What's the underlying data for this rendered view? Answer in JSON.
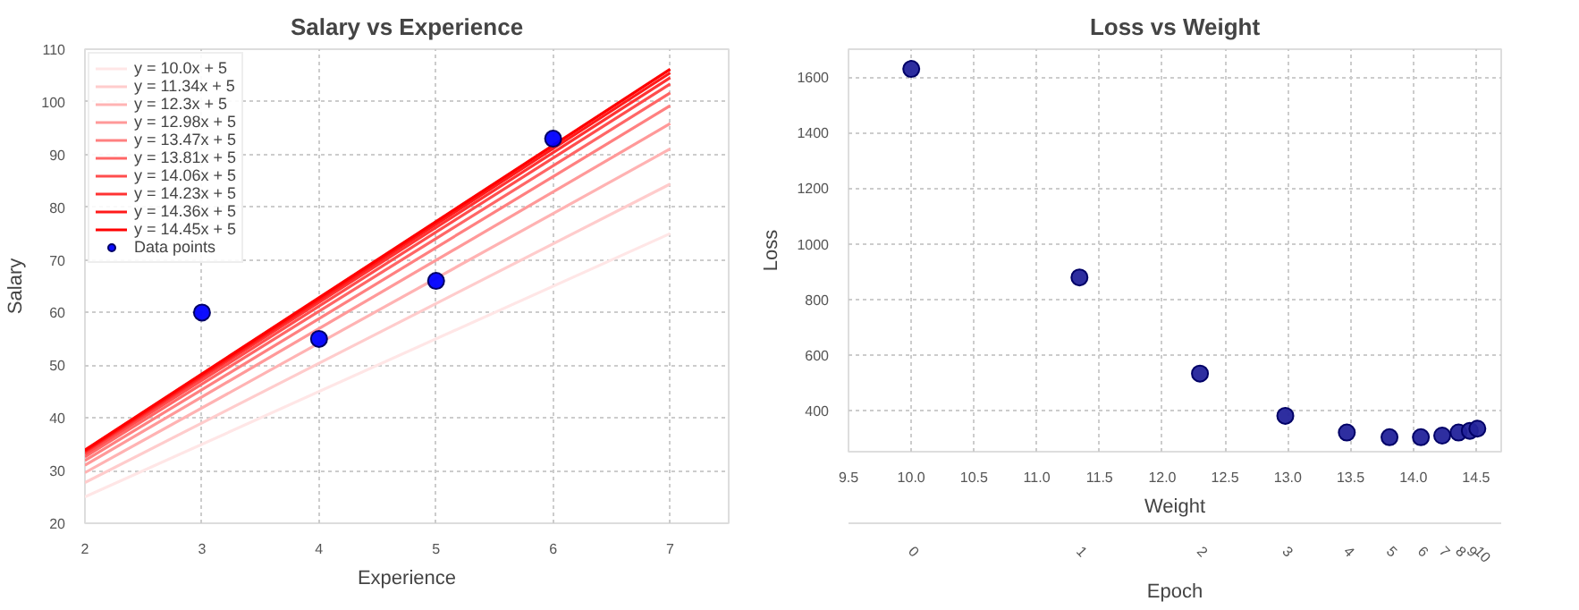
{
  "chart_data": [
    {
      "type": "line",
      "title": "Salary vs Experience",
      "xlabel": "Experience",
      "ylabel": "Salary",
      "xlim": [
        2,
        7.5
      ],
      "ylim": [
        20,
        110
      ],
      "xticks": [
        2,
        3,
        4,
        5,
        6,
        7
      ],
      "yticks": [
        20,
        30,
        40,
        50,
        60,
        70,
        80,
        90,
        100,
        110
      ],
      "grid": true,
      "legend": "top left",
      "line_style": "solid",
      "series": [
        {
          "name": "y = 10.0x + 5",
          "color": "#ffe6e6",
          "x": [
            2,
            7
          ],
          "values": [
            25,
            75
          ]
        },
        {
          "name": "y = 11.34x + 5",
          "color": "#ffcccc",
          "x": [
            2,
            7
          ],
          "values": [
            27.7,
            84.4
          ]
        },
        {
          "name": "y = 12.3x + 5",
          "color": "#ffb3b3",
          "x": [
            2,
            7
          ],
          "values": [
            29.6,
            91.1
          ]
        },
        {
          "name": "y = 12.98x + 5",
          "color": "#ff9999",
          "x": [
            2,
            7
          ],
          "values": [
            31.0,
            95.9
          ]
        },
        {
          "name": "y = 13.47x + 5",
          "color": "#ff8080",
          "x": [
            2,
            7
          ],
          "values": [
            31.9,
            99.3
          ]
        },
        {
          "name": "y = 13.81x + 5",
          "color": "#ff6666",
          "x": [
            2,
            7
          ],
          "values": [
            32.6,
            101.7
          ]
        },
        {
          "name": "y = 14.06x + 5",
          "color": "#ff4d4d",
          "x": [
            2,
            7
          ],
          "values": [
            33.1,
            103.4
          ]
        },
        {
          "name": "y = 14.23x + 5",
          "color": "#ff3333",
          "x": [
            2,
            7
          ],
          "values": [
            33.5,
            104.6
          ]
        },
        {
          "name": "y = 14.36x + 5",
          "color": "#ff1a1a",
          "x": [
            2,
            7
          ],
          "values": [
            33.7,
            105.5
          ]
        },
        {
          "name": "y = 14.45x + 5",
          "color": "#ff0000",
          "x": [
            2,
            7
          ],
          "values": [
            33.9,
            106.2
          ]
        },
        {
          "name": "Data points",
          "type": "scatter",
          "marker": "circle",
          "color": "#0000ff",
          "x": [
            3,
            4,
            5,
            6
          ],
          "values": [
            60,
            55,
            66,
            93
          ]
        }
      ]
    },
    {
      "type": "scatter",
      "title": "Loss vs Weight",
      "xlabel": "Weight",
      "ylabel": "Loss",
      "x2label": "Epoch",
      "marker": "circle",
      "grid": true,
      "xlim": [
        9.5,
        14.7
      ],
      "ylim": [
        252,
        1700
      ],
      "xticks": [
        {
          "value": 9.5,
          "label": "9.5"
        },
        {
          "value": 10,
          "label": "10.0"
        },
        {
          "value": 10.5,
          "label": "10.5"
        },
        {
          "value": 11,
          "label": "11.0"
        },
        {
          "value": 11.5,
          "label": "11.5"
        },
        {
          "value": 12,
          "label": "12.0"
        },
        {
          "value": 12.5,
          "label": "12.5"
        },
        {
          "value": 13,
          "label": "13.0"
        },
        {
          "value": 13.5,
          "label": "13.5"
        },
        {
          "value": 14,
          "label": "14.0"
        },
        {
          "value": 14.5,
          "label": "14.5"
        }
      ],
      "yticks": [
        400,
        600,
        800,
        1000,
        1200,
        1400,
        1600
      ],
      "annotations": [
        "0",
        "1",
        "2",
        "3",
        "4",
        "5",
        "6",
        "7",
        "8",
        "9",
        "10"
      ],
      "series": [
        {
          "color": "#23239b",
          "x": [
            10,
            11.34,
            12.3,
            12.98,
            13.47,
            13.81,
            14.06,
            14.23,
            14.36,
            14.45,
            14.51
          ],
          "values": [
            1629,
            879,
            533,
            381,
            321,
            304,
            304,
            310,
            321,
            327,
            335
          ]
        }
      ]
    }
  ]
}
